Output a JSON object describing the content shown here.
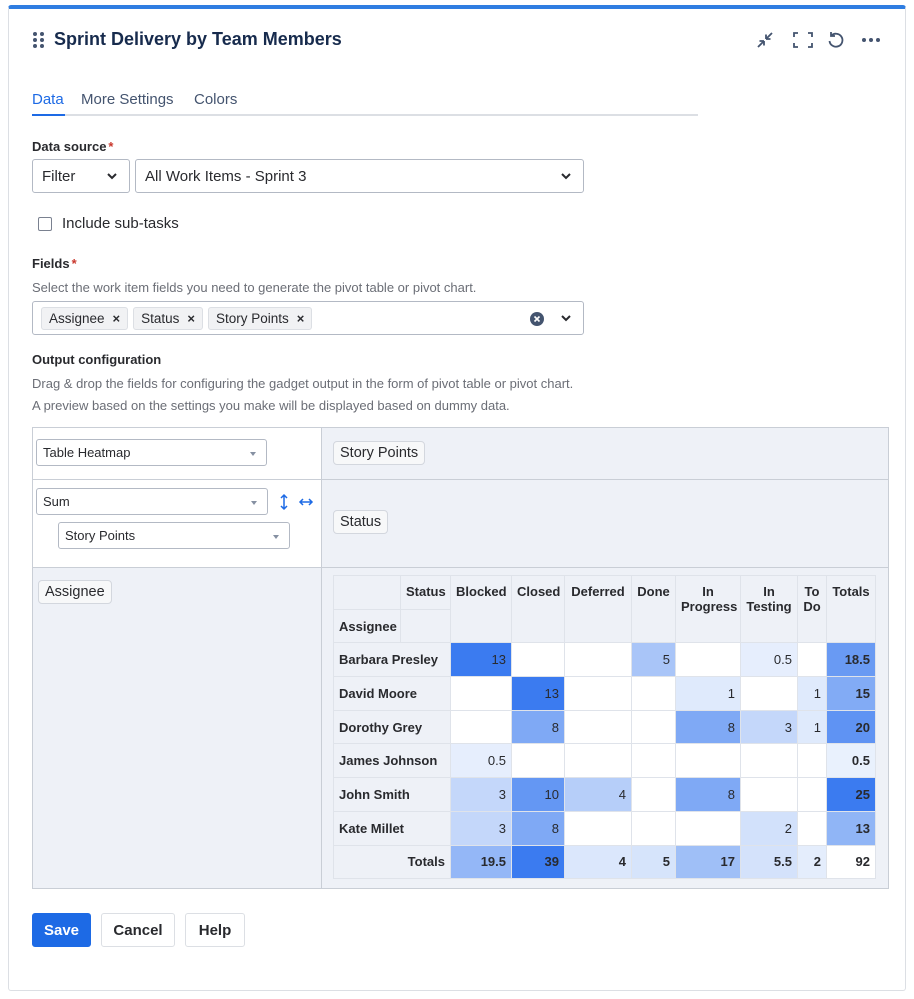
{
  "header": {
    "title": "Sprint Delivery by Team Members"
  },
  "tabs": [
    "Data",
    "More Settings",
    "Colors"
  ],
  "data_source": {
    "label": "Data source",
    "required_mark": "*",
    "type": "Filter",
    "value": "All Work Items - Sprint 3"
  },
  "include_subtasks": {
    "label": "Include sub-tasks"
  },
  "fields": {
    "label": "Fields",
    "required_mark": "*",
    "help": "Select the work item fields you need to generate the pivot table or pivot chart.",
    "tags": [
      "Assignee",
      "Status",
      "Story Points"
    ]
  },
  "output": {
    "label": "Output configuration",
    "help": [
      "Drag & drop the fields for configuring the gadget output in the form of pivot table or pivot chart.",
      "A preview based on the settings you make will be displayed based on dummy data."
    ]
  },
  "pivot": {
    "chart_type": "Table Heatmap",
    "aggregation": "Sum",
    "measure": "Story Points",
    "value_field": "Story Points",
    "column_field": "Status",
    "row_field": "Assignee"
  },
  "table": {
    "column_header": "Status",
    "row_header": "Assignee",
    "columns": [
      "Blocked",
      "Closed",
      "Deferred",
      "Done",
      "In Progress",
      "In Testing",
      "To Do",
      "Totals"
    ],
    "rows": [
      {
        "name": "Barbara Presley",
        "values": [
          13,
          null,
          null,
          5,
          null,
          0.5,
          null,
          18.5
        ]
      },
      {
        "name": "David Moore",
        "values": [
          null,
          13,
          null,
          null,
          1,
          null,
          1,
          15
        ]
      },
      {
        "name": "Dorothy Grey",
        "values": [
          null,
          8,
          null,
          null,
          8,
          3,
          1,
          20
        ]
      },
      {
        "name": "James Johnson",
        "values": [
          0.5,
          null,
          null,
          null,
          null,
          null,
          null,
          0.5
        ]
      },
      {
        "name": "John Smith",
        "values": [
          3,
          10,
          4,
          null,
          8,
          null,
          null,
          25
        ]
      },
      {
        "name": "Kate Millet",
        "values": [
          3,
          8,
          null,
          null,
          null,
          2,
          null,
          13
        ]
      }
    ],
    "totals": {
      "label": "Totals",
      "values": [
        19.5,
        39,
        4,
        5,
        17,
        5.5,
        2,
        92
      ]
    }
  },
  "buttons": [
    "Save",
    "Cancel",
    "Help"
  ]
}
